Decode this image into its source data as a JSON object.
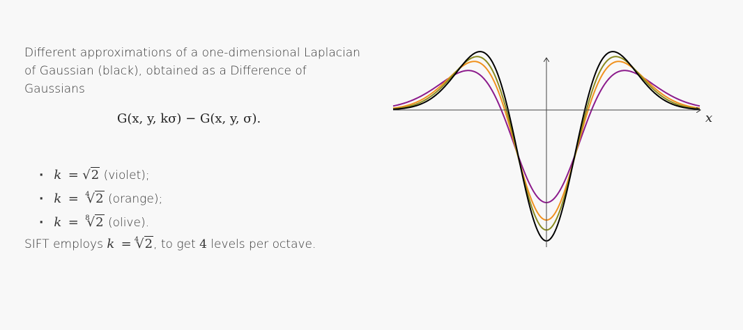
{
  "intro": {
    "text": "Different approximations of a one-dimensional Laplacian of Gaussian (black), obtained as a Difference of Gaussians"
  },
  "formula": {
    "text": "G(x, y, kσ) − G(x, y, σ)."
  },
  "bullets": [
    {
      "k_var": "k",
      "eq": "=",
      "root_index": "",
      "root_arg": "2",
      "desc": "(violet);"
    },
    {
      "k_var": "k",
      "eq": "=",
      "root_index": "4",
      "root_arg": "2",
      "desc": "(orange);"
    },
    {
      "k_var": "k",
      "eq": "=",
      "root_index": "8",
      "root_arg": "2",
      "desc": "(olive)."
    }
  ],
  "sift": {
    "prefix": "SIFT employs",
    "k_var": "k",
    "eq": "=",
    "root_index": "4",
    "root_arg": "2",
    "middle": ", to get",
    "levels": "4",
    "suffix": "levels per octave."
  },
  "chart_data": {
    "type": "line",
    "xlabel": "x",
    "ylabel": "",
    "grid": false,
    "legend": "none",
    "x_range": [
      -4,
      4
    ],
    "series": [
      {
        "color": "#000000",
        "kind": "laplacian-of-gaussian"
      },
      {
        "k": 1.0905,
        "color": "#8a8a20",
        "kind": "difference-of-gaussians"
      },
      {
        "k": 1.1892,
        "color": "#f0911d",
        "kind": "difference-of-gaussians"
      },
      {
        "k": 1.4142,
        "color": "#8b1a8b",
        "kind": "difference-of-gaussians"
      }
    ]
  }
}
